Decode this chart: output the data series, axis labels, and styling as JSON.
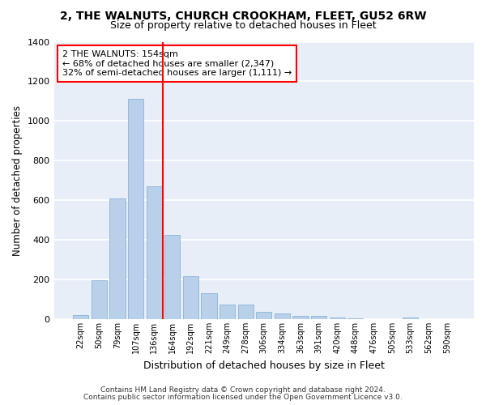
{
  "title": "2, THE WALNUTS, CHURCH CROOKHAM, FLEET, GU52 6RW",
  "subtitle": "Size of property relative to detached houses in Fleet",
  "xlabel": "Distribution of detached houses by size in Fleet",
  "ylabel": "Number of detached properties",
  "bar_color": "#b8d0ea",
  "bar_edge_color": "#7aabcf",
  "background_color": "#e8eef8",
  "grid_color": "#ffffff",
  "categories": [
    "22sqm",
    "50sqm",
    "79sqm",
    "107sqm",
    "136sqm",
    "164sqm",
    "192sqm",
    "221sqm",
    "249sqm",
    "278sqm",
    "306sqm",
    "334sqm",
    "363sqm",
    "391sqm",
    "420sqm",
    "448sqm",
    "476sqm",
    "505sqm",
    "533sqm",
    "562sqm",
    "590sqm"
  ],
  "values": [
    20,
    195,
    610,
    1110,
    670,
    425,
    215,
    130,
    75,
    75,
    35,
    30,
    15,
    15,
    10,
    5,
    0,
    0,
    10,
    0,
    0
  ],
  "property_label": "2 THE WALNUTS: 154sqm",
  "annotation_line1": "← 68% of detached houses are smaller (2,347)",
  "annotation_line2": "32% of semi-detached houses are larger (1,111) →",
  "vline_bin_index": 4.5,
  "footer_line1": "Contains HM Land Registry data © Crown copyright and database right 2024.",
  "footer_line2": "Contains public sector information licensed under the Open Government Licence v3.0.",
  "ylim": [
    0,
    1400
  ],
  "yticks": [
    0,
    200,
    400,
    600,
    800,
    1000,
    1200,
    1400
  ]
}
